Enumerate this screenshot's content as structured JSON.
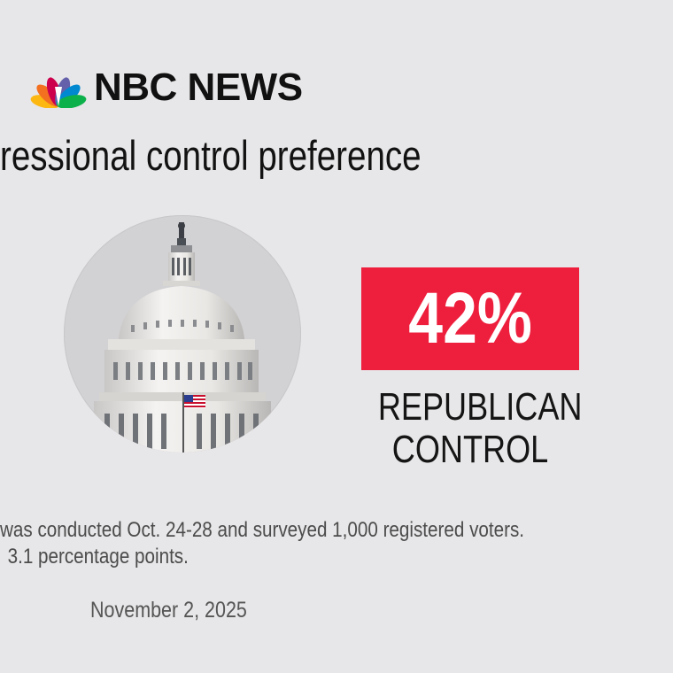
{
  "brand": {
    "name": "NBC NEWS",
    "peacock_colors": [
      "#fcb711",
      "#f37021",
      "#cc004c",
      "#6460aa",
      "#0089d0",
      "#0db14b"
    ]
  },
  "title": "ressional control preference",
  "image": {
    "icon": "capitol-dome"
  },
  "result": {
    "value_label": "42%",
    "label_line1": "REPUBLICAN",
    "label_line2": "CONTROL",
    "accent_color": "#ee1f3d"
  },
  "chart_data": {
    "type": "table",
    "title": "ressional control preference",
    "rows": [
      {
        "category": "REPUBLICAN CONTROL",
        "value": 42,
        "unit": "%"
      }
    ]
  },
  "note": {
    "line1": "was conducted Oct. 24-28 and surveyed 1,000 registered voters.",
    "line2": "3.1 percentage points."
  },
  "date": "November 2, 2025"
}
